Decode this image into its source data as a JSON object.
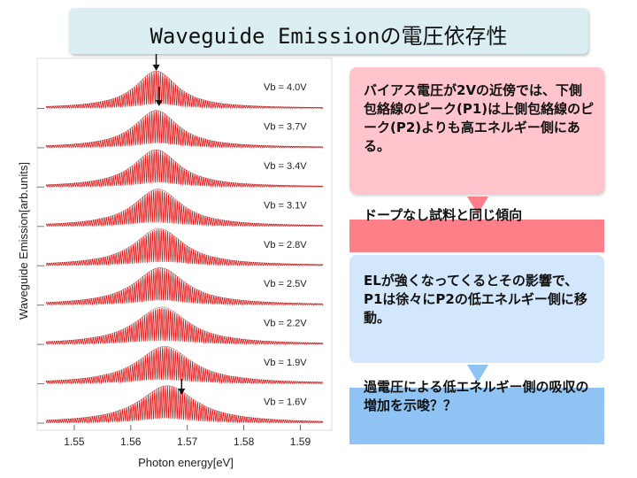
{
  "title": "Waveguide Emissionの電圧依存性",
  "notes": {
    "note1": "バイアス電圧が2Vの近傍では、下側包絡線のピーク(P1)は上側包絡線のピーク(P2)よりも高エネルギー側にある。",
    "note2": "ドープなし試料と同じ傾向",
    "note3": "ELが強くなってくるとその影響で、P1は徐々にP2の低エネルギー側に移動。",
    "note4": "過電圧による低エネルギー側の吸収の増加を示唆？？"
  },
  "colors": {
    "trace": "#e01818",
    "title_bg": "#dbeef2",
    "pink": "#ffc4cc",
    "red": "#ff7f89",
    "light_blue": "#d2e7fb",
    "blue": "#8ec3f4"
  },
  "chart_data": {
    "type": "line",
    "xlabel": "Photon energy[eV]",
    "ylabel": "Waveguide Emission[arb.units]",
    "xlim": [
      1.545,
      1.594
    ],
    "x_ticks": [
      "1.55",
      "1.56",
      "1.57",
      "1.58",
      "1.59"
    ],
    "x_tick_values": [
      1.55,
      1.56,
      1.57,
      1.58,
      1.59
    ],
    "series": [
      {
        "name": "Vb = 4.0V",
        "peak": 1.5645
      },
      {
        "name": "Vb = 3.7V",
        "peak": 1.5645
      },
      {
        "name": "Vb = 3.4V",
        "peak": 1.5645
      },
      {
        "name": "Vb = 3.1V",
        "peak": 1.5648
      },
      {
        "name": "Vb = 2.8V",
        "peak": 1.565
      },
      {
        "name": "Vb = 2.5V",
        "peak": 1.5652
      },
      {
        "name": "Vb = 2.2V",
        "peak": 1.5655
      },
      {
        "name": "Vb = 1.9V",
        "peak": 1.566
      },
      {
        "name": "Vb = 1.6V",
        "peak": 1.5665
      }
    ],
    "grid": false
  }
}
